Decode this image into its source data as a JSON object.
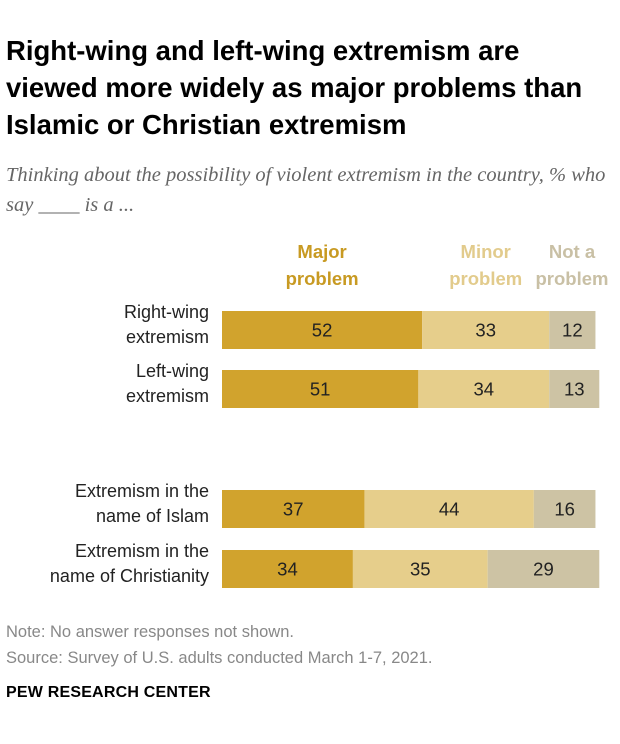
{
  "title": "Right-wing and left-wing extremism are viewed more widely as major problems than Islamic or Christian extremism",
  "subtitle": "Thinking about the possibility of violent extremism in the country, % who say ____ is a ...",
  "note": "Note: No answer responses not shown.",
  "source": "Source: Survey of U.S. adults conducted March 1-7, 2021.",
  "brand": "PEW RESEARCH CENTER",
  "colors": {
    "major": "#D1A32D",
    "minor": "#E6CE8B",
    "not": "#CDC3A4",
    "major_text": "#C89A22",
    "minor_text": "#E2CB8C",
    "not_text": "#C9C0A5"
  },
  "chart_data": {
    "type": "bar",
    "orientation": "horizontal-stacked",
    "categories": [
      [
        "Right-wing",
        "extremism"
      ],
      [
        "Left-wing",
        "extremism"
      ],
      [
        "Extremism in the",
        "name of Islam"
      ],
      [
        "Extremism in the",
        "name of Christianity"
      ]
    ],
    "series": [
      {
        "name": [
          "Major",
          "problem"
        ],
        "values": [
          52,
          51,
          37,
          34
        ]
      },
      {
        "name": [
          "Minor",
          "problem"
        ],
        "values": [
          33,
          34,
          44,
          35
        ]
      },
      {
        "name": [
          "Not a",
          "problem"
        ],
        "values": [
          12,
          13,
          16,
          29
        ]
      }
    ]
  }
}
